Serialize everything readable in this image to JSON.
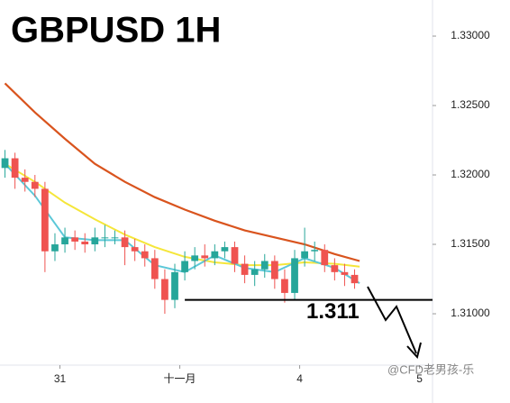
{
  "chart_data": {
    "type": "candlestick",
    "title": "GBPUSD 1H",
    "x": [
      -11,
      -9,
      -7,
      -5,
      -3,
      -1,
      1,
      3,
      5,
      7,
      9,
      11,
      13,
      15,
      17,
      19,
      21,
      23,
      25,
      27,
      29,
      31,
      33,
      35,
      37,
      39,
      41,
      43,
      45,
      47,
      49,
      51,
      53,
      55,
      57,
      59
    ],
    "open": [
      1.3205,
      1.3212,
      1.3198,
      1.3195,
      1.319,
      1.3145,
      1.315,
      1.3155,
      1.3152,
      1.315,
      1.3155,
      1.3155,
      1.3155,
      1.3148,
      1.3145,
      1.314,
      1.3125,
      1.311,
      1.313,
      1.3138,
      1.3142,
      1.314,
      1.3145,
      1.3148,
      1.3136,
      1.3128,
      1.3132,
      1.3138,
      1.3125,
      1.3115,
      1.314,
      1.3145,
      1.3146,
      1.3135,
      1.313,
      1.3128
    ],
    "high": [
      1.3218,
      1.3216,
      1.3204,
      1.32,
      1.3195,
      1.3158,
      1.3162,
      1.316,
      1.3158,
      1.3162,
      1.3164,
      1.316,
      1.316,
      1.3154,
      1.315,
      1.3146,
      1.3132,
      1.3136,
      1.3145,
      1.3148,
      1.315,
      1.315,
      1.3152,
      1.3152,
      1.3142,
      1.3138,
      1.3143,
      1.3142,
      1.3132,
      1.3146,
      1.3162,
      1.3152,
      1.315,
      1.314,
      1.3136,
      1.3132
    ],
    "low": [
      1.3198,
      1.319,
      1.3188,
      1.3184,
      1.313,
      1.3138,
      1.3144,
      1.3146,
      1.3144,
      1.3145,
      1.3148,
      1.315,
      1.3135,
      1.3138,
      1.3134,
      1.3118,
      1.31,
      1.3104,
      1.3124,
      1.3132,
      1.3134,
      1.3135,
      1.314,
      1.313,
      1.3122,
      1.312,
      1.3126,
      1.3118,
      1.3108,
      1.311,
      1.3134,
      1.3138,
      1.313,
      1.3124,
      1.312,
      1.3118
    ],
    "close": [
      1.3212,
      1.3198,
      1.3195,
      1.319,
      1.3145,
      1.315,
      1.3155,
      1.3152,
      1.315,
      1.3155,
      1.3155,
      1.3155,
      1.3148,
      1.3145,
      1.314,
      1.3125,
      1.311,
      1.313,
      1.3138,
      1.3142,
      1.314,
      1.3145,
      1.3148,
      1.3136,
      1.3128,
      1.3132,
      1.3138,
      1.3125,
      1.3115,
      1.314,
      1.3145,
      1.3146,
      1.3135,
      1.313,
      1.3128,
      1.3122
    ],
    "up_color": "#26a69a",
    "down_color": "#ef5350",
    "lines": [
      {
        "color": "#d9541e",
        "x": [
          -11,
          -5,
          1,
          7,
          13,
          19,
          25,
          31,
          37,
          43,
          49,
          55,
          60
        ],
        "values": [
          1.3266,
          1.3245,
          1.3226,
          1.3208,
          1.3195,
          1.3184,
          1.3175,
          1.3167,
          1.316,
          1.3155,
          1.315,
          1.3143,
          1.3138
        ]
      },
      {
        "color": "#f5e63a",
        "x": [
          -11,
          -5,
          1,
          7,
          13,
          19,
          25,
          31,
          37,
          43,
          49,
          55,
          60
        ],
        "values": [
          1.3208,
          1.3195,
          1.318,
          1.3168,
          1.3157,
          1.3148,
          1.3141,
          1.3137,
          1.3135,
          1.3135,
          1.3137,
          1.3136,
          1.3134
        ]
      },
      {
        "color": "#5cc8d8",
        "x": [
          -11,
          -5,
          1,
          7,
          13,
          19,
          25,
          31,
          37,
          43,
          49,
          55,
          60
        ],
        "values": [
          1.3208,
          1.3185,
          1.3155,
          1.3153,
          1.3153,
          1.3135,
          1.313,
          1.3142,
          1.3133,
          1.313,
          1.314,
          1.3133,
          1.3122
        ]
      }
    ],
    "support": {
      "value": 1.311,
      "label": "1.311",
      "xstart": 25
    },
    "xlim": [
      -12,
      74.6
    ],
    "xticks": [
      {
        "value": 0,
        "label": "31"
      },
      {
        "value": 24,
        "label": "十一月"
      },
      {
        "value": 48,
        "label": "4"
      },
      {
        "value": 72,
        "label": "5"
      }
    ],
    "ylim": [
      1.3063,
      1.3326
    ],
    "yticks": [
      {
        "value": 1.31,
        "label": "1.31000"
      },
      {
        "value": 1.315,
        "label": "1.31500"
      },
      {
        "value": 1.32,
        "label": "1.32000"
      },
      {
        "value": 1.325,
        "label": "1.32500"
      },
      {
        "value": 1.33,
        "label": "1.33000"
      }
    ],
    "watermark": "@CFD老男孩-乐"
  }
}
